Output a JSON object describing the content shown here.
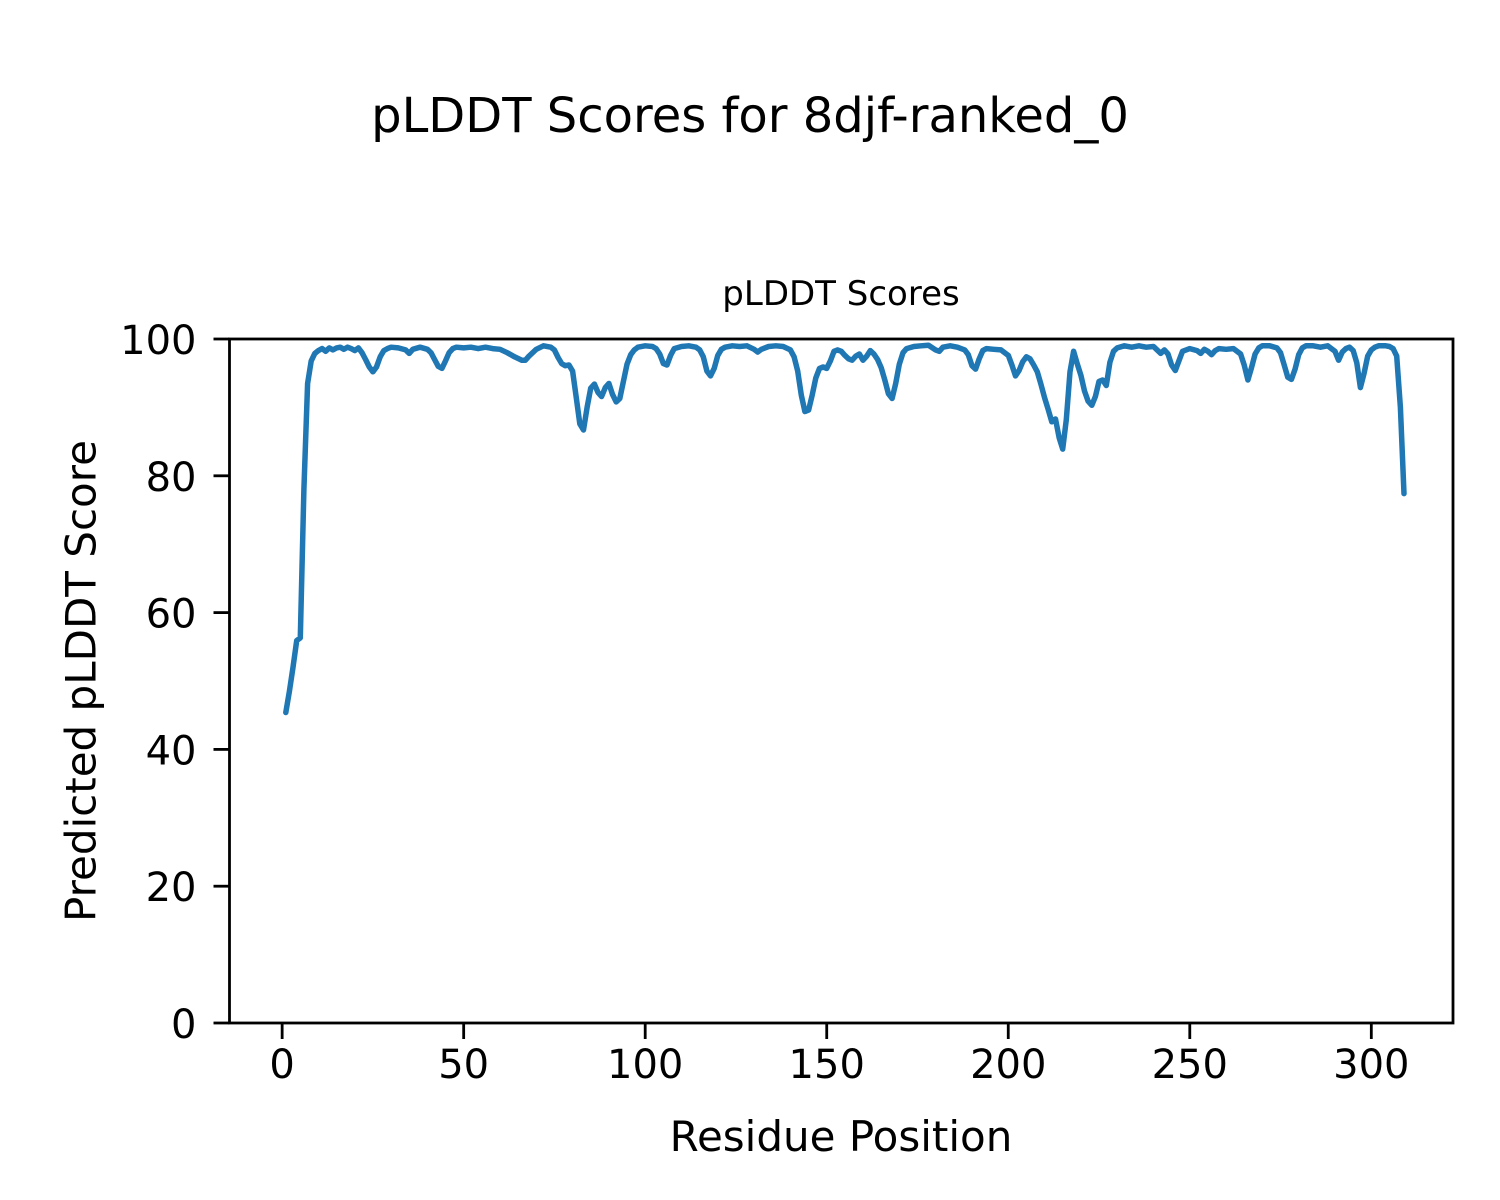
{
  "chart_data": {
    "type": "line",
    "figure_title": "pLDDT Scores for 8djf-ranked_0",
    "title": "pLDDT Scores",
    "xlabel": "Residue Position",
    "ylabel": "Predicted pLDDT Score",
    "x_ticks": [
      0,
      50,
      100,
      150,
      200,
      250,
      300
    ],
    "y_ticks": [
      0,
      20,
      40,
      60,
      80,
      100
    ],
    "xlim": [
      -14.5,
      322.5
    ],
    "ylim": [
      0,
      100
    ],
    "grid": false,
    "legend_position": "none",
    "line_color": "#1f77b4",
    "axis_color": "#000000",
    "series": [
      {
        "name": "pLDDT",
        "points": [
          [
            1,
            45.4
          ],
          [
            2,
            48.5
          ],
          [
            3,
            52.0
          ],
          [
            4,
            55.9
          ],
          [
            5,
            56.3
          ],
          [
            6,
            78.0
          ],
          [
            7,
            93.5
          ],
          [
            8,
            96.8
          ],
          [
            9,
            97.9
          ],
          [
            10,
            98.3
          ],
          [
            11,
            98.6
          ],
          [
            12,
            98.2
          ],
          [
            13,
            98.7
          ],
          [
            14,
            98.4
          ],
          [
            15,
            98.7
          ],
          [
            16,
            98.8
          ],
          [
            17,
            98.5
          ],
          [
            18,
            98.8
          ],
          [
            19,
            98.6
          ],
          [
            20,
            98.3
          ],
          [
            21,
            98.7
          ],
          [
            22,
            98.0
          ],
          [
            23,
            97.0
          ],
          [
            24,
            95.9
          ],
          [
            25,
            95.2
          ],
          [
            26,
            95.9
          ],
          [
            27,
            97.4
          ],
          [
            28,
            98.3
          ],
          [
            29,
            98.6
          ],
          [
            30,
            98.8
          ],
          [
            32,
            98.7
          ],
          [
            34,
            98.4
          ],
          [
            35,
            97.9
          ],
          [
            36,
            98.5
          ],
          [
            38,
            98.8
          ],
          [
            40,
            98.5
          ],
          [
            41,
            98.0
          ],
          [
            42,
            97.0
          ],
          [
            43,
            96.0
          ],
          [
            44,
            95.7
          ],
          [
            45,
            96.8
          ],
          [
            46,
            98.0
          ],
          [
            47,
            98.6
          ],
          [
            48,
            98.8
          ],
          [
            50,
            98.7
          ],
          [
            52,
            98.8
          ],
          [
            54,
            98.6
          ],
          [
            56,
            98.8
          ],
          [
            58,
            98.6
          ],
          [
            60,
            98.5
          ],
          [
            62,
            98.0
          ],
          [
            64,
            97.4
          ],
          [
            66,
            96.9
          ],
          [
            67,
            96.9
          ],
          [
            68,
            97.5
          ],
          [
            70,
            98.5
          ],
          [
            72,
            99.0
          ],
          [
            74,
            98.8
          ],
          [
            75,
            98.4
          ],
          [
            76,
            97.3
          ],
          [
            77,
            96.4
          ],
          [
            78,
            96.1
          ],
          [
            79,
            96.2
          ],
          [
            80,
            95.3
          ],
          [
            81,
            91.5
          ],
          [
            82,
            87.6
          ],
          [
            83,
            86.7
          ],
          [
            84,
            90.0
          ],
          [
            85,
            92.8
          ],
          [
            86,
            93.4
          ],
          [
            87,
            92.2
          ],
          [
            88,
            91.6
          ],
          [
            89,
            92.9
          ],
          [
            90,
            93.5
          ],
          [
            91,
            91.9
          ],
          [
            92,
            90.8
          ],
          [
            93,
            91.3
          ],
          [
            94,
            93.8
          ],
          [
            95,
            96.3
          ],
          [
            96,
            97.7
          ],
          [
            97,
            98.4
          ],
          [
            98,
            98.8
          ],
          [
            100,
            99.0
          ],
          [
            102,
            98.9
          ],
          [
            103,
            98.6
          ],
          [
            104,
            97.8
          ],
          [
            105,
            96.4
          ],
          [
            106,
            96.2
          ],
          [
            107,
            97.6
          ],
          [
            108,
            98.6
          ],
          [
            110,
            98.9
          ],
          [
            112,
            99.0
          ],
          [
            114,
            98.8
          ],
          [
            115,
            98.4
          ],
          [
            116,
            97.4
          ],
          [
            117,
            95.3
          ],
          [
            118,
            94.6
          ],
          [
            119,
            95.7
          ],
          [
            120,
            97.6
          ],
          [
            121,
            98.5
          ],
          [
            122,
            98.8
          ],
          [
            124,
            99.0
          ],
          [
            126,
            98.9
          ],
          [
            128,
            99.0
          ],
          [
            130,
            98.5
          ],
          [
            131,
            98.1
          ],
          [
            132,
            98.5
          ],
          [
            134,
            98.9
          ],
          [
            136,
            99.0
          ],
          [
            138,
            98.9
          ],
          [
            140,
            98.4
          ],
          [
            141,
            97.4
          ],
          [
            142,
            95.3
          ],
          [
            143,
            91.8
          ],
          [
            144,
            89.4
          ],
          [
            145,
            89.6
          ],
          [
            146,
            91.8
          ],
          [
            147,
            94.3
          ],
          [
            148,
            95.7
          ],
          [
            149,
            95.9
          ],
          [
            150,
            95.7
          ],
          [
            151,
            96.8
          ],
          [
            152,
            98.2
          ],
          [
            153,
            98.4
          ],
          [
            154,
            98.2
          ],
          [
            155,
            97.6
          ],
          [
            156,
            97.1
          ],
          [
            157,
            96.9
          ],
          [
            158,
            97.5
          ],
          [
            159,
            97.8
          ],
          [
            160,
            96.9
          ],
          [
            161,
            97.5
          ],
          [
            162,
            98.3
          ],
          [
            163,
            97.8
          ],
          [
            164,
            97.0
          ],
          [
            165,
            95.8
          ],
          [
            166,
            94.0
          ],
          [
            167,
            92.0
          ],
          [
            168,
            91.3
          ],
          [
            169,
            93.5
          ],
          [
            170,
            96.3
          ],
          [
            171,
            98.0
          ],
          [
            172,
            98.6
          ],
          [
            174,
            98.9
          ],
          [
            176,
            99.0
          ],
          [
            178,
            99.1
          ],
          [
            180,
            98.4
          ],
          [
            181,
            98.2
          ],
          [
            182,
            98.8
          ],
          [
            184,
            99.0
          ],
          [
            186,
            98.8
          ],
          [
            188,
            98.4
          ],
          [
            189,
            97.7
          ],
          [
            190,
            96.1
          ],
          [
            191,
            95.6
          ],
          [
            192,
            97.1
          ],
          [
            193,
            98.3
          ],
          [
            194,
            98.6
          ],
          [
            196,
            98.5
          ],
          [
            198,
            98.4
          ],
          [
            200,
            97.6
          ],
          [
            201,
            96.2
          ],
          [
            202,
            94.6
          ],
          [
            203,
            95.4
          ],
          [
            204,
            96.7
          ],
          [
            205,
            97.4
          ],
          [
            206,
            97.1
          ],
          [
            207,
            96.2
          ],
          [
            208,
            95.2
          ],
          [
            209,
            93.4
          ],
          [
            210,
            91.4
          ],
          [
            211,
            89.7
          ],
          [
            212,
            87.9
          ],
          [
            213,
            88.3
          ],
          [
            214,
            85.6
          ],
          [
            215,
            83.9
          ],
          [
            216,
            88.2
          ],
          [
            217,
            95.2
          ],
          [
            218,
            98.2
          ],
          [
            219,
            96.4
          ],
          [
            220,
            94.7
          ],
          [
            221,
            92.4
          ],
          [
            222,
            90.9
          ],
          [
            223,
            90.3
          ],
          [
            224,
            91.6
          ],
          [
            225,
            93.8
          ],
          [
            226,
            94.0
          ],
          [
            227,
            93.2
          ],
          [
            228,
            96.6
          ],
          [
            229,
            98.2
          ],
          [
            230,
            98.7
          ],
          [
            232,
            99.0
          ],
          [
            234,
            98.8
          ],
          [
            236,
            99.0
          ],
          [
            238,
            98.8
          ],
          [
            240,
            98.9
          ],
          [
            242,
            97.9
          ],
          [
            243,
            98.4
          ],
          [
            244,
            97.8
          ],
          [
            245,
            96.2
          ],
          [
            246,
            95.4
          ],
          [
            247,
            96.8
          ],
          [
            248,
            98.2
          ],
          [
            250,
            98.6
          ],
          [
            252,
            98.3
          ],
          [
            253,
            97.9
          ],
          [
            254,
            98.5
          ],
          [
            255,
            98.2
          ],
          [
            256,
            97.7
          ],
          [
            257,
            98.3
          ],
          [
            258,
            98.6
          ],
          [
            260,
            98.5
          ],
          [
            262,
            98.6
          ],
          [
            264,
            97.8
          ],
          [
            265,
            96.2
          ],
          [
            266,
            94.0
          ],
          [
            267,
            95.8
          ],
          [
            268,
            97.8
          ],
          [
            269,
            98.7
          ],
          [
            270,
            99.0
          ],
          [
            272,
            99.0
          ],
          [
            274,
            98.7
          ],
          [
            275,
            98.0
          ],
          [
            276,
            96.2
          ],
          [
            277,
            94.4
          ],
          [
            278,
            94.1
          ],
          [
            279,
            95.6
          ],
          [
            280,
            97.7
          ],
          [
            281,
            98.7
          ],
          [
            282,
            99.0
          ],
          [
            284,
            99.0
          ],
          [
            286,
            98.8
          ],
          [
            288,
            99.0
          ],
          [
            290,
            98.2
          ],
          [
            291,
            96.9
          ],
          [
            292,
            98.1
          ],
          [
            293,
            98.6
          ],
          [
            294,
            98.8
          ],
          [
            295,
            98.3
          ],
          [
            296,
            96.5
          ],
          [
            297,
            92.9
          ],
          [
            298,
            95.0
          ],
          [
            299,
            97.5
          ],
          [
            300,
            98.4
          ],
          [
            301,
            98.8
          ],
          [
            302,
            99.0
          ],
          [
            303,
            99.0
          ],
          [
            304,
            99.0
          ],
          [
            305,
            98.9
          ],
          [
            306,
            98.6
          ],
          [
            307,
            97.5
          ],
          [
            308,
            90.0
          ],
          [
            309,
            77.4
          ]
        ]
      }
    ]
  }
}
